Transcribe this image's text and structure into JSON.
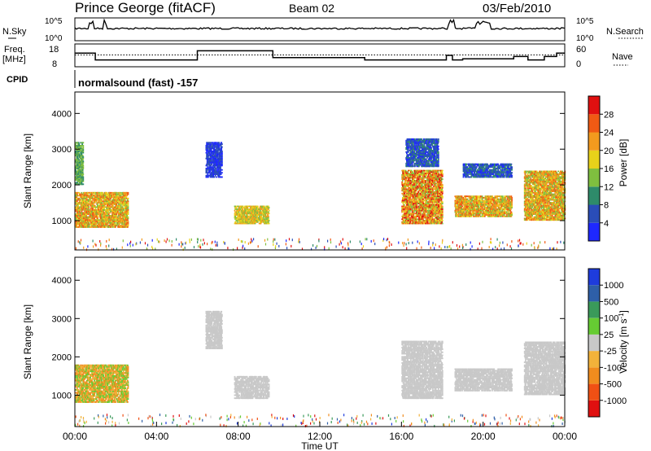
{
  "header": {
    "station": "Prince George (fitACF)",
    "beam": "Beam 02",
    "date": "03/Feb/2010"
  },
  "sidebars": {
    "nsky": "N.Sky",
    "nsearch": "N.Search",
    "freq_line1": "Freq.",
    "freq_line2": "[MHz]",
    "nave": "Nave",
    "cpid": "CPID"
  },
  "cpid_text": "normalsound (fast) -157",
  "colors": {
    "power": [
      "#1e28ff",
      "#2a4db8",
      "#2e8b6a",
      "#7fbf3f",
      "#e8d21a",
      "#f39a1e",
      "#f05a14",
      "#e01010"
    ],
    "velocity": [
      "#1e3cdc",
      "#2e5fa8",
      "#3a9a5a",
      "#66cc33",
      "#c8c8c8",
      "#f2b23a",
      "#f08c1e",
      "#f05014",
      "#e01010"
    ]
  },
  "chart_data": [
    {
      "type": "line",
      "panel": "noise",
      "left_axis": {
        "label": "N.Sky",
        "ticks": [
          "10^5",
          "10^0"
        ]
      },
      "right_axis": {
        "label": "N.Search",
        "ticks": [
          "10^5",
          "10^0"
        ]
      },
      "x": [
        "00:00",
        "04:00",
        "08:00",
        "12:00",
        "16:00",
        "20:00",
        "00:00"
      ]
    },
    {
      "type": "line",
      "panel": "frequency-nave",
      "left_axis": {
        "label": "Freq. [MHz]",
        "ticks": [
          18,
          8
        ]
      },
      "right_axis": {
        "label": "Nave",
        "ticks": [
          60,
          0
        ]
      },
      "series": [
        {
          "name": "Freq.",
          "x": [
            0,
            1.0,
            1.0,
            6.0,
            6.0,
            9.7,
            9.7,
            14.2,
            14.2,
            18.2,
            18.2,
            18.5,
            18.5,
            19.0,
            19.0,
            21.5,
            21.5,
            22.2,
            22.2,
            23.0,
            23.0,
            23.6,
            23.6,
            24
          ],
          "y": [
            14,
            14,
            11,
            11,
            15,
            15,
            12,
            12,
            11,
            11,
            13,
            13,
            11,
            11,
            11.5,
            11.5,
            12.5,
            12.5,
            11,
            11,
            12.5,
            12.5,
            14,
            14
          ]
        },
        {
          "name": "Nave",
          "x": [
            0,
            24
          ],
          "y": [
            31,
            31
          ]
        }
      ]
    },
    {
      "type": "heatmap",
      "panel": "power",
      "ylabel": "Slant Range [km]",
      "yticks": [
        1000,
        2000,
        3000,
        4000
      ],
      "ylim": [
        180,
        4600
      ],
      "xlim": [
        0,
        24
      ],
      "colorbar": {
        "label": "Power [dB]",
        "ticks": [
          4,
          8,
          12,
          16,
          20,
          24,
          28
        ]
      },
      "regions": [
        {
          "x0": 0.0,
          "x1": 2.6,
          "y0": 800,
          "y1": 1800,
          "levels": [
            3,
            4,
            5,
            6
          ]
        },
        {
          "x0": 0.0,
          "x1": 0.4,
          "y0": 2000,
          "y1": 3200,
          "levels": [
            2,
            3
          ]
        },
        {
          "x0": 6.4,
          "x1": 7.2,
          "y0": 2200,
          "y1": 3200,
          "levels": [
            0,
            1
          ]
        },
        {
          "x0": 7.8,
          "x1": 9.5,
          "y0": 900,
          "y1": 1400,
          "levels": [
            3,
            4,
            5
          ]
        },
        {
          "x0": 16.0,
          "x1": 18.0,
          "y0": 900,
          "y1": 2400,
          "levels": [
            3,
            4,
            5,
            6,
            7
          ]
        },
        {
          "x0": 16.2,
          "x1": 17.8,
          "y0": 2500,
          "y1": 3300,
          "levels": [
            0,
            1,
            2
          ]
        },
        {
          "x0": 18.6,
          "x1": 21.4,
          "y0": 1100,
          "y1": 1700,
          "levels": [
            3,
            4,
            5,
            6
          ]
        },
        {
          "x0": 19.0,
          "x1": 21.4,
          "y0": 2200,
          "y1": 2600,
          "levels": [
            0,
            1,
            2
          ]
        },
        {
          "x0": 22.0,
          "x1": 24.0,
          "y0": 1000,
          "y1": 2400,
          "levels": [
            3,
            4,
            5,
            6
          ]
        }
      ]
    },
    {
      "type": "heatmap",
      "panel": "velocity",
      "xlabel": "Time UT",
      "ylabel": "Slant Range [km]",
      "yticks": [
        1000,
        2000,
        3000,
        4000
      ],
      "ylim": [
        180,
        4600
      ],
      "xlim": [
        0,
        24
      ],
      "xticks": [
        "00:00",
        "04:00",
        "08:00",
        "12:00",
        "16:00",
        "20:00",
        "00:00"
      ],
      "colorbar": {
        "label": "Velocity [m s^-1]",
        "ticks": [
          1000,
          500,
          100,
          25,
          -25,
          -100,
          -500,
          -1000
        ]
      },
      "regions": [
        {
          "x0": 0.0,
          "x1": 2.6,
          "y0": 800,
          "y1": 1800,
          "levels": [
            6,
            5,
            3
          ]
        },
        {
          "x0": 6.4,
          "x1": 7.2,
          "y0": 2200,
          "y1": 3200,
          "levels": [
            4
          ]
        },
        {
          "x0": 7.8,
          "x1": 9.5,
          "y0": 900,
          "y1": 1500,
          "levels": [
            4
          ]
        },
        {
          "x0": 16.0,
          "x1": 18.0,
          "y0": 900,
          "y1": 2400,
          "levels": [
            4
          ]
        },
        {
          "x0": 18.6,
          "x1": 21.4,
          "y0": 1100,
          "y1": 1700,
          "levels": [
            4
          ]
        },
        {
          "x0": 22.0,
          "x1": 24.0,
          "y0": 1000,
          "y1": 2400,
          "levels": [
            4
          ]
        }
      ]
    }
  ]
}
